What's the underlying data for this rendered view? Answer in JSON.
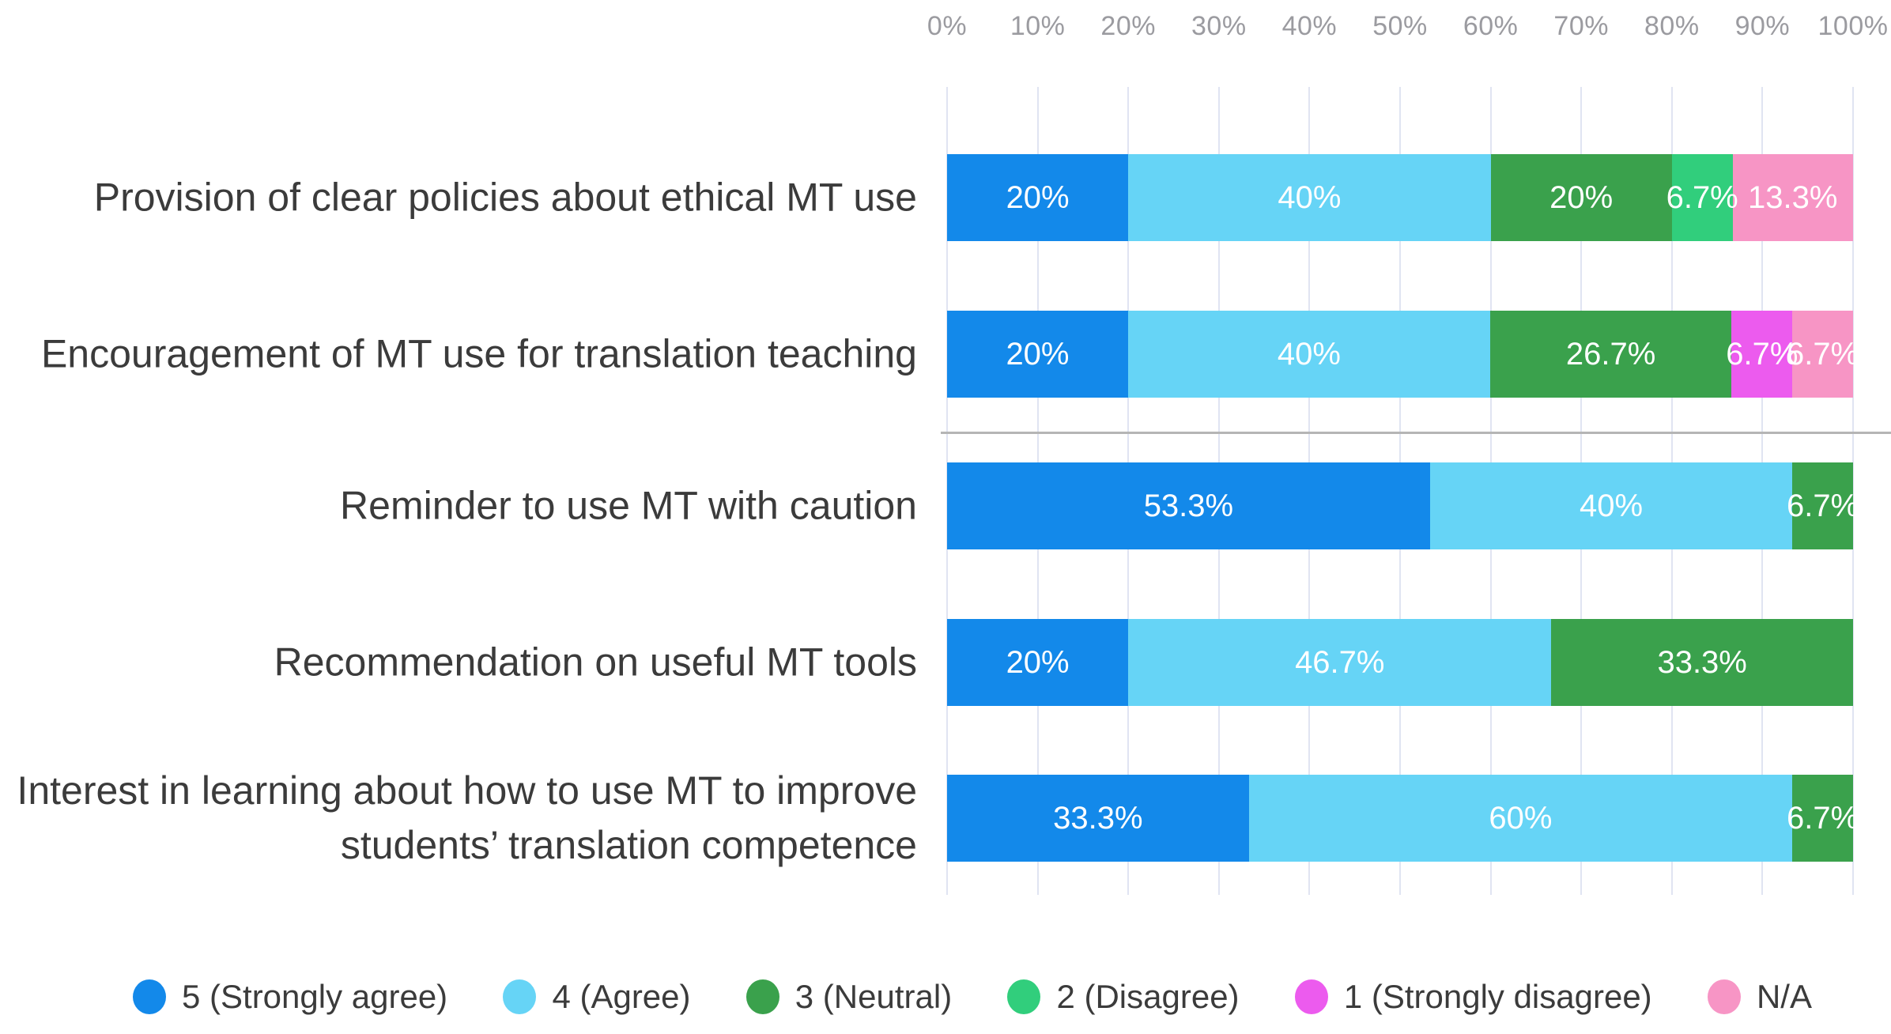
{
  "chart_data": {
    "type": "bar",
    "orientation": "horizontal",
    "stacked": true,
    "title": "",
    "grid": true,
    "x_axis": {
      "position": "top",
      "min": 0,
      "max": 100,
      "tick_labels": [
        "0%",
        "10%",
        "20%",
        "30%",
        "40%",
        "50%",
        "60%",
        "70%",
        "80%",
        "90%",
        "100%"
      ]
    },
    "categories": [
      "Provision of clear policies about ethical MT use",
      "Encouragement of MT use for translation teaching",
      "Reminder to use MT with caution",
      "Recommendation on useful MT tools",
      "Interest in learning about how to use MT to improve students’ translation competence"
    ],
    "rows": [
      {
        "segments": [
          {
            "series": "5 (Strongly agree)",
            "value": 20,
            "label": "20%"
          },
          {
            "series": "4 (Agree)",
            "value": 40,
            "label": "40%"
          },
          {
            "series": "3 (Neutral)",
            "value": 20,
            "label": "20%"
          },
          {
            "series": "2 (Disagree)",
            "value": 6.7,
            "label": "6.7%"
          },
          {
            "series": "N/A",
            "value": 13.3,
            "label": "13.3%"
          }
        ]
      },
      {
        "segments": [
          {
            "series": "5 (Strongly agree)",
            "value": 20,
            "label": "20%"
          },
          {
            "series": "4 (Agree)",
            "value": 40,
            "label": "40%"
          },
          {
            "series": "3 (Neutral)",
            "value": 26.7,
            "label": "26.7%"
          },
          {
            "series": "1 (Strongly disagree)",
            "value": 6.7,
            "label": "6.7%"
          },
          {
            "series": "N/A",
            "value": 6.7,
            "label": "6.7%"
          }
        ]
      },
      {
        "segments": [
          {
            "series": "5 (Strongly agree)",
            "value": 53.3,
            "label": "53.3%"
          },
          {
            "series": "4 (Agree)",
            "value": 40,
            "label": "40%"
          },
          {
            "series": "3 (Neutral)",
            "value": 6.7,
            "label": "6.7%"
          }
        ]
      },
      {
        "segments": [
          {
            "series": "5 (Strongly agree)",
            "value": 20,
            "label": "20%"
          },
          {
            "series": "4 (Agree)",
            "value": 46.7,
            "label": "46.7%"
          },
          {
            "series": "3 (Neutral)",
            "value": 33.3,
            "label": "33.3%"
          }
        ]
      },
      {
        "segments": [
          {
            "series": "5 (Strongly agree)",
            "value": 33.3,
            "label": "33.3%"
          },
          {
            "series": "4 (Agree)",
            "value": 60,
            "label": "60%"
          },
          {
            "series": "3 (Neutral)",
            "value": 6.7,
            "label": "6.7%"
          }
        ]
      }
    ],
    "legend": [
      {
        "label": "5 (Strongly agree)",
        "color": "#1389ea"
      },
      {
        "label": "4 (Agree)",
        "color": "#66d4f6"
      },
      {
        "label": "3 (Neutral)",
        "color": "#3aa14c"
      },
      {
        "label": "2 (Disagree)",
        "color": "#31ce7c"
      },
      {
        "label": "1 (Strongly disagree)",
        "color": "#ec5bee"
      },
      {
        "label": "N/A",
        "color": "#f795c5"
      }
    ],
    "legend_position": "bottom",
    "divider_after_category_index": 1
  }
}
